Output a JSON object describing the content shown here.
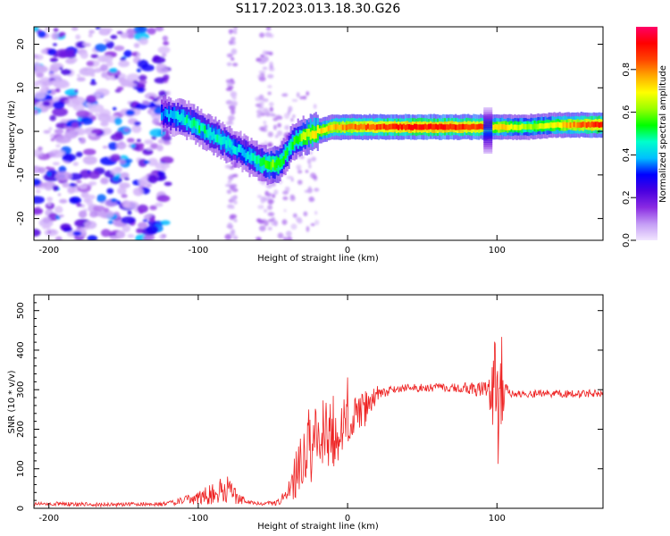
{
  "figure": {
    "title": "S117.2023.013.18.30.G26"
  },
  "chart_data": [
    {
      "type": "heatmap",
      "xlabel": "Height of straight line (km)",
      "ylabel": "Frequency (Hz)",
      "xlim": [
        -210,
        171
      ],
      "ylim": [
        -25,
        24
      ],
      "xticks": [
        -200,
        -100,
        0,
        100
      ],
      "yticks": [
        -20,
        -10,
        0,
        10,
        20
      ],
      "colorbar": {
        "label": "Normalized spectral amplitude",
        "ticks": [
          0.0,
          0.2,
          0.4,
          0.6,
          0.8
        ],
        "range": [
          0,
          1
        ],
        "colormap": [
          "#f2e6ff",
          "#c49cf5",
          "#8a2be2",
          "#4a00e0",
          "#0000ff",
          "#00bfff",
          "#00ffcc",
          "#00ff00",
          "#9aff00",
          "#ffff00",
          "#ffaa00",
          "#ff4400",
          "#ff0000",
          "#ff0066"
        ]
      },
      "ridge": {
        "x": [
          -125,
          -110,
          -100,
          -90,
          -80,
          -70,
          -60,
          -50,
          -45,
          -40,
          -35,
          -30,
          -20,
          -10,
          0,
          20,
          40,
          60,
          80,
          90,
          95,
          100,
          120,
          140,
          160,
          171
        ],
        "y": [
          4,
          3,
          1,
          -1,
          -3,
          -5,
          -7,
          -8,
          -7,
          -4,
          -2,
          -1,
          0,
          1,
          1,
          1,
          1,
          1,
          1,
          1,
          1,
          1,
          1,
          1.5,
          1.5,
          1.5
        ],
        "amplitude": [
          0.35,
          0.45,
          0.5,
          0.45,
          0.45,
          0.4,
          0.5,
          0.6,
          0.55,
          0.5,
          0.55,
          0.65,
          0.7,
          0.75,
          0.8,
          0.85,
          0.9,
          0.9,
          0.88,
          0.85,
          0.7,
          0.75,
          0.6,
          0.7,
          0.85,
          0.9
        ]
      },
      "noise_region_x": [
        -210,
        -120
      ]
    },
    {
      "type": "line",
      "xlabel": "Height of straight line (km)",
      "ylabel": "SNR (10 * v/v)",
      "xlim": [
        -210,
        171
      ],
      "ylim": [
        0,
        540
      ],
      "xticks": [
        -200,
        -100,
        0,
        100
      ],
      "yticks": [
        0,
        100,
        200,
        300,
        400,
        500
      ],
      "color": "#ee2222",
      "series": [
        {
          "x": [
            -210,
            -200,
            -180,
            -160,
            -140,
            -120,
            -110,
            -100,
            -95,
            -90,
            -85,
            -80,
            -75,
            -70,
            -60,
            -50,
            -45,
            -40,
            -35,
            -30,
            -25,
            -20,
            -15,
            -10,
            -5,
            0,
            5,
            10,
            15,
            20,
            25,
            30,
            40,
            50,
            60,
            70,
            80,
            90,
            95,
            100,
            103,
            105,
            110,
            120,
            130,
            140,
            150,
            160,
            171
          ],
          "y": [
            10,
            12,
            10,
            9,
            10,
            12,
            20,
            25,
            35,
            40,
            45,
            50,
            30,
            20,
            12,
            12,
            20,
            40,
            80,
            140,
            160,
            180,
            200,
            190,
            210,
            220,
            230,
            250,
            270,
            290,
            295,
            300,
            305,
            305,
            305,
            305,
            305,
            300,
            290,
            280,
            300,
            290,
            290,
            290,
            290,
            290,
            290,
            290,
            290
          ],
          "amp": [
            5,
            5,
            5,
            5,
            5,
            6,
            10,
            15,
            25,
            30,
            30,
            35,
            20,
            10,
            6,
            6,
            10,
            20,
            60,
            80,
            100,
            80,
            80,
            100,
            80,
            60,
            50,
            60,
            30,
            20,
            15,
            10,
            10,
            10,
            10,
            10,
            15,
            20,
            40,
            200,
            150,
            30,
            10,
            10,
            10,
            10,
            10,
            10,
            10
          ]
        }
      ]
    }
  ]
}
